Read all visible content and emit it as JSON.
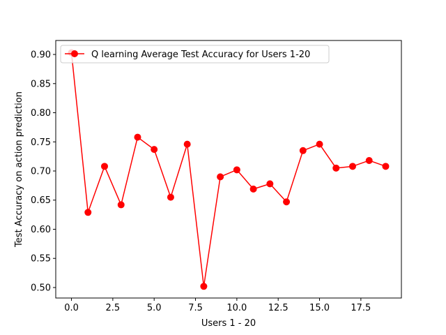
{
  "chart_data": {
    "type": "line",
    "xlabel": "Users 1 - 20",
    "ylabel": "Test Accuracy on action prediction",
    "xlim": [
      -0.95,
      19.95
    ],
    "ylim": [
      0.482,
      0.924
    ],
    "xticks": [
      0.0,
      2.5,
      5.0,
      7.5,
      10.0,
      12.5,
      15.0,
      17.5
    ],
    "xtick_labels": [
      "0.0",
      "2.5",
      "5.0",
      "7.5",
      "10.0",
      "12.5",
      "15.0",
      "17.5"
    ],
    "yticks": [
      0.5,
      0.55,
      0.6,
      0.65,
      0.7,
      0.75,
      0.8,
      0.85,
      0.9
    ],
    "ytick_labels": [
      "0.50",
      "0.55",
      "0.60",
      "0.65",
      "0.70",
      "0.75",
      "0.80",
      "0.85",
      "0.90"
    ],
    "grid": false,
    "legend_position": "top-left",
    "series": [
      {
        "name": "Q learning Average Test Accuracy for Users 1-20",
        "color": "#ff0000",
        "marker": "circle",
        "x": [
          0,
          1,
          2,
          3,
          4,
          5,
          6,
          7,
          8,
          9,
          10,
          11,
          12,
          13,
          14,
          15,
          16,
          17,
          18,
          19
        ],
        "y": [
          0.903,
          0.629,
          0.708,
          0.642,
          0.758,
          0.737,
          0.655,
          0.746,
          0.502,
          0.69,
          0.702,
          0.669,
          0.678,
          0.647,
          0.735,
          0.746,
          0.705,
          0.708,
          0.718,
          0.708
        ]
      }
    ]
  }
}
